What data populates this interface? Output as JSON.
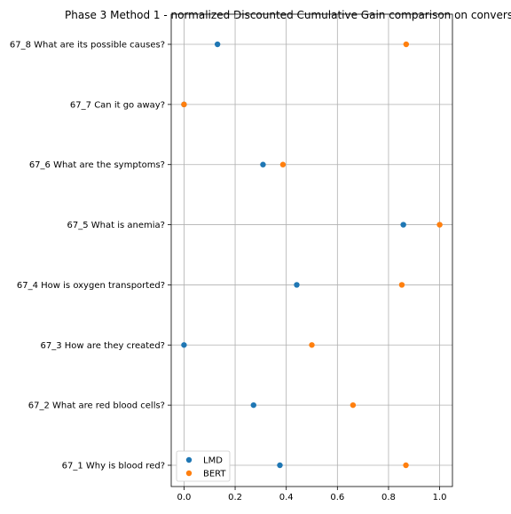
{
  "chart_data": {
    "type": "scatter",
    "title": "Phase 3 Method 1 - normalized Discounted Cumulative Gain comparison on convers",
    "xlabel": "",
    "ylabel": "",
    "xlim": [
      -0.05,
      1.05
    ],
    "x_ticks": [
      0.0,
      0.2,
      0.4,
      0.6,
      0.8,
      1.0
    ],
    "x_tick_labels": [
      "0.0",
      "0.2",
      "0.4",
      "0.6",
      "0.8",
      "1.0"
    ],
    "categories": [
      "67_1 Why is blood red?",
      "67_2 What are red blood cells?",
      "67_3 How are they created?",
      "67_4 How is oxygen transported?",
      "67_5 What is anemia?",
      "67_6 What are the symptoms?",
      "67_7 Can it go away?",
      "67_8 What are its possible causes?"
    ],
    "series": [
      {
        "name": "LMD",
        "color": "#1f77b4",
        "values": [
          0.375,
          0.272,
          0.0,
          0.441,
          0.858,
          0.309,
          0.0,
          0.131
        ]
      },
      {
        "name": "BERT",
        "color": "#ff7f0e",
        "values": [
          0.868,
          0.661,
          0.5,
          0.852,
          1.0,
          0.387,
          0.0,
          0.869
        ]
      }
    ],
    "grid": true,
    "legend_position": "lower-left"
  }
}
